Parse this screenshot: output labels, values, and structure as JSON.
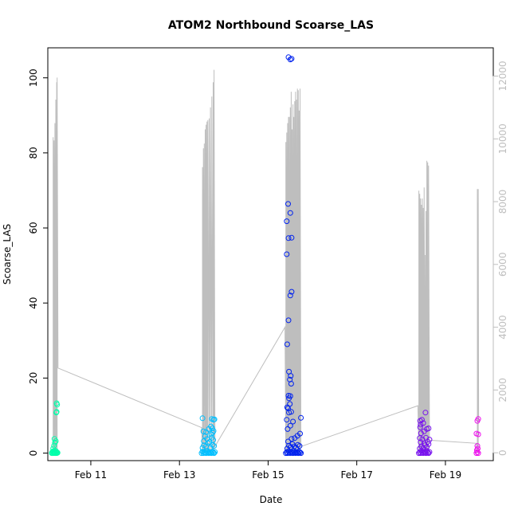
{
  "chart_data": {
    "type": "scatter",
    "title": "ATOM2 Northbound Scoarse_LAS",
    "xlabel": "Date",
    "ylabel": "Scoarse_LAS",
    "x_ticks": [
      "Feb 11",
      "Feb 13",
      "Feb 15",
      "Feb 17",
      "Feb 19"
    ],
    "x_range_days": [
      10.03,
      20.08
    ],
    "x_tick_days": [
      11,
      13,
      15,
      17,
      19
    ],
    "y_left_ticks": [
      0,
      20,
      40,
      60,
      80,
      100
    ],
    "y_left_range": [
      -2,
      108
    ],
    "y_right_ticks": [
      0,
      2000,
      4000,
      6000,
      8000,
      10000,
      12000
    ],
    "y_right_range": [
      -250,
      12900
    ],
    "colors": {
      "axis": "#000000",
      "right_axis": "#bebebe",
      "line": "#bebebe"
    },
    "secondary_line": {
      "axis": "right",
      "points": [
        [
          10.15,
          0
        ],
        [
          10.15,
          10050
        ],
        [
          10.17,
          0
        ],
        [
          10.17,
          9950
        ],
        [
          10.19,
          0
        ],
        [
          10.19,
          10500
        ],
        [
          10.21,
          0
        ],
        [
          10.21,
          11250
        ],
        [
          10.23,
          0
        ],
        [
          10.23,
          11800
        ],
        [
          10.24,
          0
        ],
        [
          10.24,
          11950
        ],
        [
          10.26,
          2700
        ],
        [
          13.5,
          800
        ],
        [
          13.52,
          0
        ],
        [
          13.52,
          9100
        ],
        [
          13.54,
          0
        ],
        [
          13.54,
          9700
        ],
        [
          13.56,
          0
        ],
        [
          13.56,
          9850
        ],
        [
          13.58,
          0
        ],
        [
          13.58,
          10300
        ],
        [
          13.6,
          0
        ],
        [
          13.6,
          10450
        ],
        [
          13.62,
          0
        ],
        [
          13.62,
          10550
        ],
        [
          13.64,
          0
        ],
        [
          13.64,
          10600
        ],
        [
          13.67,
          0
        ],
        [
          13.67,
          10650
        ],
        [
          13.7,
          0
        ],
        [
          13.7,
          11000
        ],
        [
          13.73,
          0
        ],
        [
          13.73,
          11350
        ],
        [
          13.76,
          0
        ],
        [
          13.76,
          11800
        ],
        [
          13.78,
          0
        ],
        [
          13.78,
          12200
        ],
        [
          13.8,
          200
        ],
        [
          15.38,
          4000
        ],
        [
          15.4,
          0
        ],
        [
          15.4,
          9900
        ],
        [
          15.42,
          0
        ],
        [
          15.42,
          10200
        ],
        [
          15.44,
          0
        ],
        [
          15.44,
          10500
        ],
        [
          15.46,
          0
        ],
        [
          15.46,
          10700
        ],
        [
          15.48,
          0
        ],
        [
          15.48,
          10700
        ],
        [
          15.5,
          0
        ],
        [
          15.5,
          11000
        ],
        [
          15.52,
          0
        ],
        [
          15.52,
          11500
        ],
        [
          15.54,
          0
        ],
        [
          15.54,
          10300
        ],
        [
          15.56,
          0
        ],
        [
          15.56,
          11100
        ],
        [
          15.58,
          0
        ],
        [
          15.58,
          10700
        ],
        [
          15.6,
          0
        ],
        [
          15.6,
          11200
        ],
        [
          15.62,
          0
        ],
        [
          15.62,
          11500
        ],
        [
          15.64,
          0
        ],
        [
          15.64,
          11250
        ],
        [
          15.66,
          0
        ],
        [
          15.66,
          11600
        ],
        [
          15.68,
          0
        ],
        [
          15.68,
          11550
        ],
        [
          15.7,
          0
        ],
        [
          15.7,
          10900
        ],
        [
          15.72,
          0
        ],
        [
          15.72,
          11600
        ],
        [
          15.74,
          200
        ],
        [
          18.38,
          1500
        ],
        [
          18.4,
          0
        ],
        [
          18.4,
          8350
        ],
        [
          18.42,
          0
        ],
        [
          18.42,
          8250
        ],
        [
          18.44,
          0
        ],
        [
          18.44,
          8100
        ],
        [
          18.46,
          0
        ],
        [
          18.46,
          7900
        ],
        [
          18.48,
          0
        ],
        [
          18.48,
          8100
        ],
        [
          18.5,
          0
        ],
        [
          18.5,
          7800
        ],
        [
          18.52,
          0
        ],
        [
          18.52,
          8450
        ],
        [
          18.54,
          0
        ],
        [
          18.54,
          6300
        ],
        [
          18.56,
          0
        ],
        [
          18.56,
          7700
        ],
        [
          18.58,
          0
        ],
        [
          18.58,
          9300
        ],
        [
          18.6,
          0
        ],
        [
          18.6,
          9250
        ],
        [
          18.62,
          0
        ],
        [
          18.62,
          9150
        ],
        [
          18.64,
          400
        ],
        [
          19.7,
          300
        ],
        [
          19.72,
          0
        ],
        [
          19.72,
          8400
        ],
        [
          19.74,
          0
        ],
        [
          19.74,
          8400
        ],
        [
          19.75,
          1000
        ]
      ]
    },
    "series": [
      {
        "color": "#00ffaa",
        "points": [
          [
            10.12,
            0
          ],
          [
            10.13,
            0.3
          ],
          [
            10.14,
            0
          ],
          [
            10.15,
            0.5
          ],
          [
            10.16,
            0.2
          ],
          [
            10.17,
            0
          ],
          [
            10.18,
            0.4
          ],
          [
            10.19,
            0.1
          ],
          [
            10.2,
            0
          ],
          [
            10.21,
            0.6
          ],
          [
            10.22,
            0.3
          ],
          [
            10.23,
            0
          ],
          [
            10.24,
            0.2
          ],
          [
            10.25,
            0.1
          ],
          [
            10.15,
            1.2
          ],
          [
            10.17,
            2.0
          ],
          [
            10.19,
            2.8
          ],
          [
            10.21,
            3.2
          ],
          [
            10.18,
            3.8
          ],
          [
            10.22,
            10.8
          ],
          [
            10.23,
            11.0
          ],
          [
            10.24,
            12.9
          ],
          [
            10.23,
            13.3
          ]
        ]
      },
      {
        "color": "#00bfff",
        "points": [
          [
            13.5,
            0
          ],
          [
            13.52,
            0.4
          ],
          [
            13.54,
            0
          ],
          [
            13.56,
            0.3
          ],
          [
            13.58,
            0.1
          ],
          [
            13.6,
            0
          ],
          [
            13.62,
            0.5
          ],
          [
            13.64,
            0.2
          ],
          [
            13.66,
            0
          ],
          [
            13.68,
            0.3
          ],
          [
            13.7,
            0.1
          ],
          [
            13.72,
            0
          ],
          [
            13.74,
            0.4
          ],
          [
            13.76,
            0.2
          ],
          [
            13.78,
            0
          ],
          [
            13.8,
            0.3
          ],
          [
            13.52,
            1.4
          ],
          [
            13.55,
            2.1
          ],
          [
            13.6,
            1.8
          ],
          [
            13.65,
            2.6
          ],
          [
            13.7,
            1.5
          ],
          [
            13.74,
            2.2
          ],
          [
            13.78,
            1.9
          ],
          [
            13.55,
            3.2
          ],
          [
            13.62,
            3.8
          ],
          [
            13.68,
            3.0
          ],
          [
            13.73,
            4.1
          ],
          [
            13.76,
            3.5
          ],
          [
            13.58,
            4.5
          ],
          [
            13.72,
            5.0
          ],
          [
            13.75,
            5.5
          ],
          [
            13.77,
            5.9
          ],
          [
            13.54,
            5.8
          ],
          [
            13.6,
            5.6
          ],
          [
            13.66,
            6.4
          ],
          [
            13.71,
            7.1
          ],
          [
            13.74,
            6.6
          ],
          [
            13.52,
            9.3
          ],
          [
            13.73,
            9.1
          ],
          [
            13.77,
            8.9
          ],
          [
            13.79,
            9.0
          ]
        ]
      },
      {
        "color": "#0022ee",
        "points": [
          [
            15.4,
            0
          ],
          [
            15.42,
            0.3
          ],
          [
            15.44,
            0
          ],
          [
            15.46,
            0.5
          ],
          [
            15.48,
            0.2
          ],
          [
            15.5,
            0
          ],
          [
            15.52,
            0.4
          ],
          [
            15.54,
            0.1
          ],
          [
            15.56,
            0
          ],
          [
            15.58,
            0.6
          ],
          [
            15.6,
            0.2
          ],
          [
            15.62,
            0
          ],
          [
            15.64,
            0.3
          ],
          [
            15.66,
            0.1
          ],
          [
            15.68,
            0
          ],
          [
            15.7,
            0.4
          ],
          [
            15.72,
            0.2
          ],
          [
            15.74,
            0
          ],
          [
            15.43,
            1.2
          ],
          [
            15.47,
            2.0
          ],
          [
            15.51,
            1.6
          ],
          [
            15.55,
            2.4
          ],
          [
            15.59,
            1.8
          ],
          [
            15.63,
            1.4
          ],
          [
            15.67,
            2.2
          ],
          [
            15.71,
            1.9
          ],
          [
            15.45,
            3.1
          ],
          [
            15.53,
            3.8
          ],
          [
            15.6,
            4.0
          ],
          [
            15.66,
            4.6
          ],
          [
            15.72,
            5.2
          ],
          [
            15.74,
            9.4
          ],
          [
            15.44,
            6.4
          ],
          [
            15.5,
            7.3
          ],
          [
            15.56,
            8.4
          ],
          [
            15.42,
            8.9
          ],
          [
            15.47,
            10.8
          ],
          [
            15.52,
            11.0
          ],
          [
            15.45,
            11.9
          ],
          [
            15.43,
            12.2
          ],
          [
            15.49,
            13.1
          ],
          [
            15.47,
            14.6
          ],
          [
            15.5,
            15.2
          ],
          [
            15.46,
            15.3
          ],
          [
            15.52,
            18.5
          ],
          [
            15.49,
            19.6
          ],
          [
            15.51,
            20.6
          ],
          [
            15.47,
            21.7
          ],
          [
            15.43,
            29.0
          ],
          [
            15.46,
            35.4
          ],
          [
            15.5,
            42.0
          ],
          [
            15.53,
            43.0
          ],
          [
            15.42,
            53.0
          ],
          [
            15.46,
            57.3
          ],
          [
            15.53,
            57.4
          ],
          [
            15.42,
            61.8
          ],
          [
            15.5,
            64.0
          ],
          [
            15.45,
            66.4
          ],
          [
            15.46,
            105.5
          ],
          [
            15.5,
            104.9
          ],
          [
            15.53,
            105.1
          ]
        ]
      },
      {
        "color": "#7711ee",
        "points": [
          [
            18.4,
            0
          ],
          [
            18.42,
            0.3
          ],
          [
            18.44,
            0
          ],
          [
            18.46,
            0.5
          ],
          [
            18.48,
            0.2
          ],
          [
            18.5,
            0
          ],
          [
            18.52,
            0.4
          ],
          [
            18.54,
            0.1
          ],
          [
            18.56,
            0
          ],
          [
            18.58,
            0.6
          ],
          [
            18.6,
            0.2
          ],
          [
            18.62,
            0
          ],
          [
            18.64,
            0.3
          ],
          [
            18.42,
            1.2
          ],
          [
            18.46,
            1.8
          ],
          [
            18.5,
            1.4
          ],
          [
            18.54,
            2.1
          ],
          [
            18.58,
            1.6
          ],
          [
            18.62,
            2.4
          ],
          [
            18.44,
            2.9
          ],
          [
            18.52,
            2.6
          ],
          [
            18.6,
            3.0
          ],
          [
            18.42,
            4.0
          ],
          [
            18.48,
            3.7
          ],
          [
            18.56,
            4.1
          ],
          [
            18.64,
            3.6
          ],
          [
            18.45,
            5.3
          ],
          [
            18.52,
            5.8
          ],
          [
            18.58,
            6.4
          ],
          [
            18.62,
            6.6
          ],
          [
            18.43,
            6.9
          ],
          [
            18.44,
            7.6
          ],
          [
            18.5,
            8.0
          ],
          [
            18.43,
            8.6
          ],
          [
            18.47,
            8.9
          ],
          [
            18.55,
            10.8
          ]
        ]
      },
      {
        "color": "#ee11ee",
        "points": [
          [
            19.7,
            0
          ],
          [
            19.72,
            0.3
          ],
          [
            19.74,
            0
          ],
          [
            19.71,
            0.8
          ],
          [
            19.73,
            1.2
          ],
          [
            19.72,
            1.9
          ],
          [
            19.7,
            5.2
          ],
          [
            19.74,
            5.0
          ],
          [
            19.72,
            8.6
          ],
          [
            19.74,
            9.1
          ]
        ]
      }
    ]
  }
}
